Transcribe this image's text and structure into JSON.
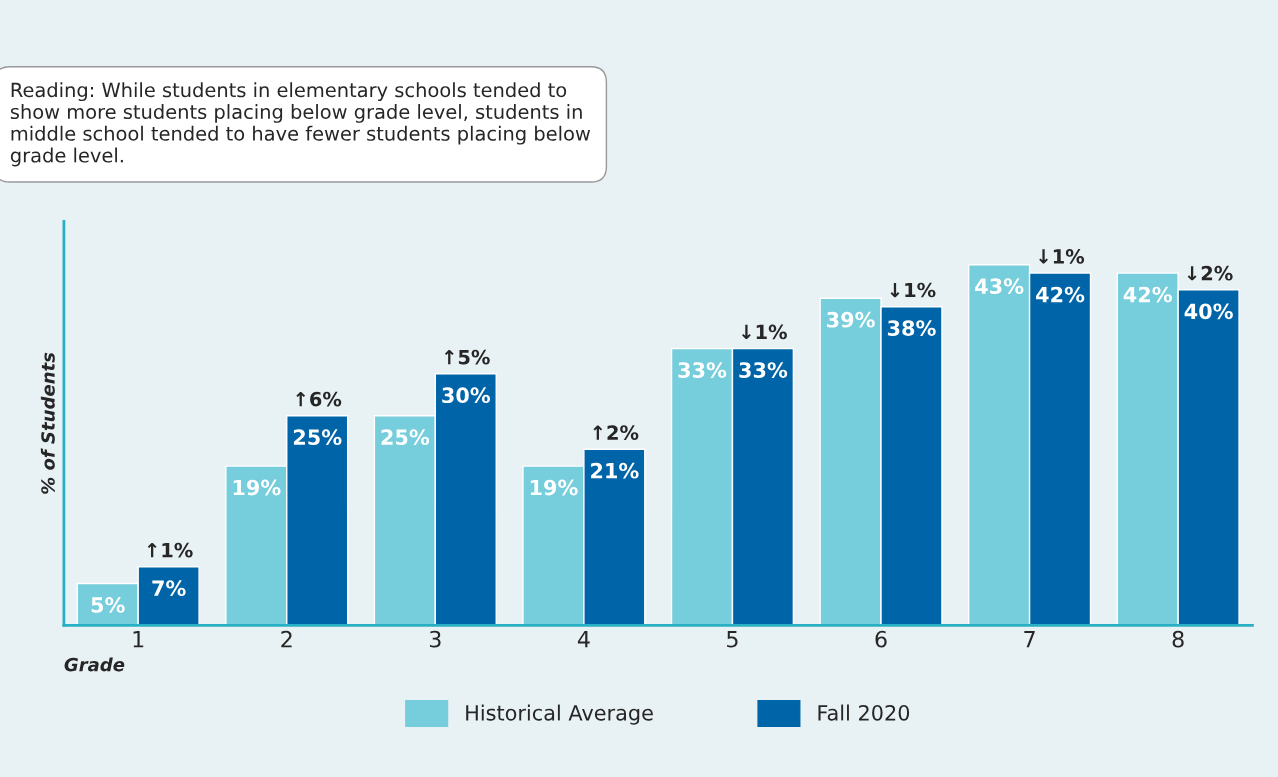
{
  "chart_data": {
    "type": "bar",
    "xlabel": "Grade",
    "ylabel": "% of Students",
    "categories": [
      "1",
      "2",
      "3",
      "4",
      "5",
      "6",
      "7",
      "8"
    ],
    "series": [
      {
        "name": "Historical Average",
        "color": "#76cddc",
        "values": [
          5,
          19,
          25,
          19,
          33,
          39,
          43,
          42
        ],
        "value_labels": [
          "5%",
          "19%",
          "25%",
          "19%",
          "33%",
          "39%",
          "43%",
          "42%"
        ]
      },
      {
        "name": "Fall 2020",
        "color": "#0064a8",
        "values": [
          7,
          25,
          30,
          21,
          33,
          38,
          42,
          40
        ],
        "value_labels": [
          "7%",
          "25%",
          "30%",
          "21%",
          "33%",
          "38%",
          "42%",
          "40%"
        ]
      }
    ],
    "tick_labels": "x",
    "grid": false,
    "legend": "bottom",
    "annotations": [
      "Reading: While students in elementary schools tended to show more students placing below grade level, students in middle school tended to have fewer students placing below grade level.",
      {
        "text": "↑1%",
        "x": "1",
        "y": 7
      },
      {
        "text": "↑6%",
        "x": "2",
        "y": 25
      },
      {
        "text": "↑5%",
        "x": "3",
        "y": 30
      },
      {
        "text": "↑2%",
        "x": "4",
        "y": 21
      },
      {
        "text": "↓1%",
        "x": "5",
        "y": 33
      },
      {
        "text": "↓1%",
        "x": "6",
        "y": 38
      },
      {
        "text": "↓1%",
        "x": "7",
        "y": 42
      },
      {
        "text": "↓2%",
        "x": "8",
        "y": 40
      }
    ]
  }
}
